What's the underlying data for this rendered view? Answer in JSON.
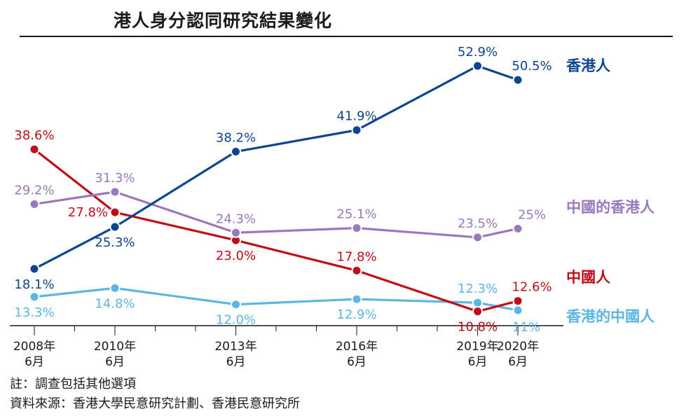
{
  "title": "港人身分認同研究結果變化",
  "notes": {
    "note": "註：調查包括其他選項",
    "source": "資料來源：香港大學民意研究計劃、香港民意研究所"
  },
  "colors": {
    "hk": "#0d4591",
    "chinese_hk": "#9b78be",
    "chinese": "#c00d16",
    "hk_chinese": "#5cb6e4",
    "axis": "#1a1a1a"
  },
  "chart_data": {
    "type": "line",
    "title": "港人身分認同研究結果變化",
    "x": [
      2008.5,
      2010.5,
      2013.5,
      2016.5,
      2019.5,
      2020.5
    ],
    "tick_labels": [
      [
        "2008年",
        "6月"
      ],
      [
        "2010年",
        "6月"
      ],
      [
        "2013年",
        "6月"
      ],
      [
        "2016年",
        "6月"
      ],
      [
        "2019年",
        "6月"
      ],
      [
        "2020年",
        "6月"
      ]
    ],
    "xlim": [
      2008.5,
      2020.5
    ],
    "ylim": [
      8,
      57
    ],
    "grid": false,
    "legend": "right (labels at line ends)",
    "series": [
      {
        "key": "hk",
        "name": "香港人",
        "values": [
          18.1,
          25.3,
          38.2,
          41.9,
          52.9,
          50.5
        ],
        "labels": [
          "18.1%",
          "25.3%",
          "38.2%",
          "41.9%",
          "52.9%",
          "50.5%"
        ],
        "label_pos": [
          "below",
          "below",
          "above",
          "above",
          "above",
          "above-right"
        ]
      },
      {
        "key": "chinese_hk",
        "name": "中國的香港人",
        "values": [
          29.2,
          31.3,
          24.3,
          25.1,
          23.5,
          25.0
        ],
        "labels": [
          "29.2%",
          "31.3%",
          "24.3%",
          "25.1%",
          "23.5%",
          "25%"
        ],
        "label_pos": [
          "above",
          "above",
          "above",
          "above",
          "above",
          "above-right"
        ]
      },
      {
        "key": "chinese",
        "name": "中國人",
        "values": [
          38.6,
          27.8,
          23.0,
          17.8,
          10.8,
          12.6
        ],
        "labels": [
          "38.6%",
          "27.8%",
          "23.0%",
          "17.8%",
          "10.8%",
          "12.6%"
        ],
        "label_pos": [
          "above",
          "above-left",
          "below",
          "above",
          "below",
          "above-right"
        ]
      },
      {
        "key": "hk_chinese",
        "name": "香港的中國人",
        "values": [
          13.3,
          14.8,
          12.0,
          12.9,
          12.3,
          11.0
        ],
        "labels": [
          "13.3%",
          "14.8%",
          "12.0%",
          "12.9%",
          "12.3%",
          "11%"
        ],
        "label_pos": [
          "below",
          "below",
          "below",
          "below",
          "above",
          "below-right"
        ]
      }
    ]
  }
}
